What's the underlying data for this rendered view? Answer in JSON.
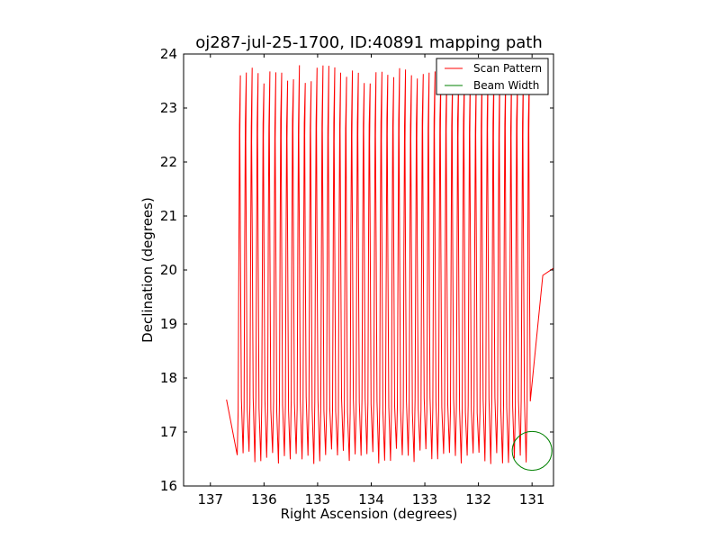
{
  "chart_data": {
    "type": "line",
    "title": "oj287-jul-25-1700, ID:40891 mapping path",
    "xlabel": "Right Ascension (degrees)",
    "ylabel": "Declination (degrees)",
    "xlim": [
      137.5,
      130.6
    ],
    "ylim": [
      16,
      24
    ],
    "x_inverted": true,
    "xticks": [
      137,
      136,
      135,
      134,
      133,
      132,
      131
    ],
    "yticks": [
      16,
      17,
      18,
      19,
      20,
      21,
      22,
      23,
      24
    ],
    "grid": false,
    "legend_position": "top-right",
    "series": [
      {
        "name": "Scan Pattern",
        "color": "#ff0000",
        "pattern": {
          "ra_start": 136.5,
          "ra_end": 131.0,
          "sweep_ra_step": 0.11,
          "sweep_ra_drift": 0.06,
          "dec_min": 16.4,
          "dec_max": 23.8,
          "dec_band_1": 17.5,
          "dec_band_2": 20.4,
          "dec_band_3": 22.7
        }
      },
      {
        "name": "Beam Width",
        "color": "#008000",
        "circle": {
          "ra_center": 131.0,
          "dec_center": 16.65,
          "ra_radius": 0.37,
          "dec_radius": 0.36
        }
      }
    ]
  }
}
